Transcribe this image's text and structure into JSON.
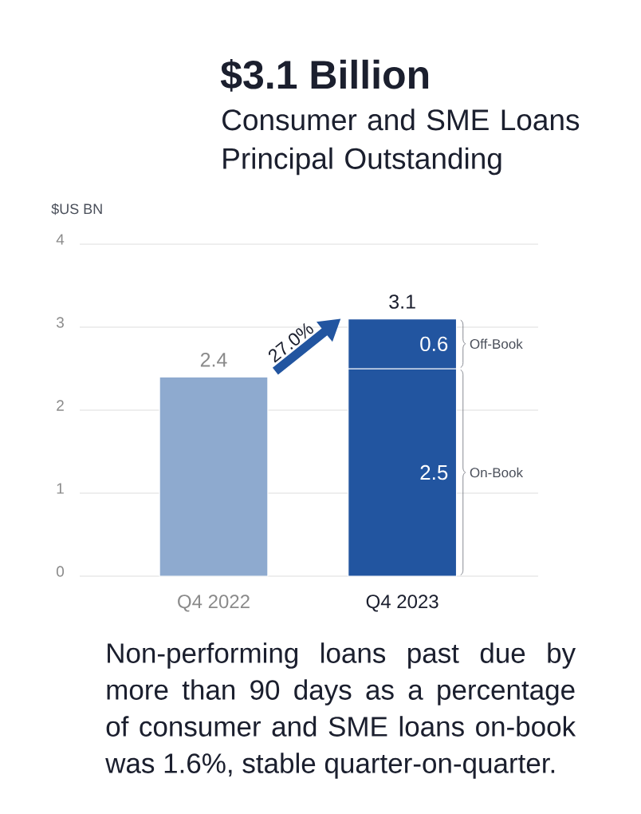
{
  "chart_data": {
    "type": "bar",
    "title": "$3.1 Billion",
    "subtitle": "Consumer and SME Loans Principal Outstanding",
    "ylabel": "$US BN",
    "categories": [
      "Q4 2022",
      "Q4 2023"
    ],
    "series": [
      {
        "color": "#8eaacf",
        "values": [
          2.4,
          null
        ]
      },
      {
        "name": "On-Book",
        "color": "#2255a0",
        "values": [
          null,
          2.5
        ],
        "value_labels": [
          null,
          "2.5"
        ]
      },
      {
        "name": "Off-Book",
        "color": "#2255a0",
        "values": [
          null,
          0.6
        ],
        "value_labels": [
          null,
          "0.6"
        ]
      }
    ],
    "stacked": true,
    "totals": [
      "2.4",
      "3.1"
    ],
    "ylim": [
      0,
      4
    ],
    "yticks": [
      0,
      1,
      2,
      3,
      4
    ],
    "grid": "y",
    "annotations": [
      "27.0%",
      "Non-performing loans past due by more than 90 days as a percentage of consumer and SME loans on-book was 1.6%, stable quarter-on-quarter."
    ]
  }
}
